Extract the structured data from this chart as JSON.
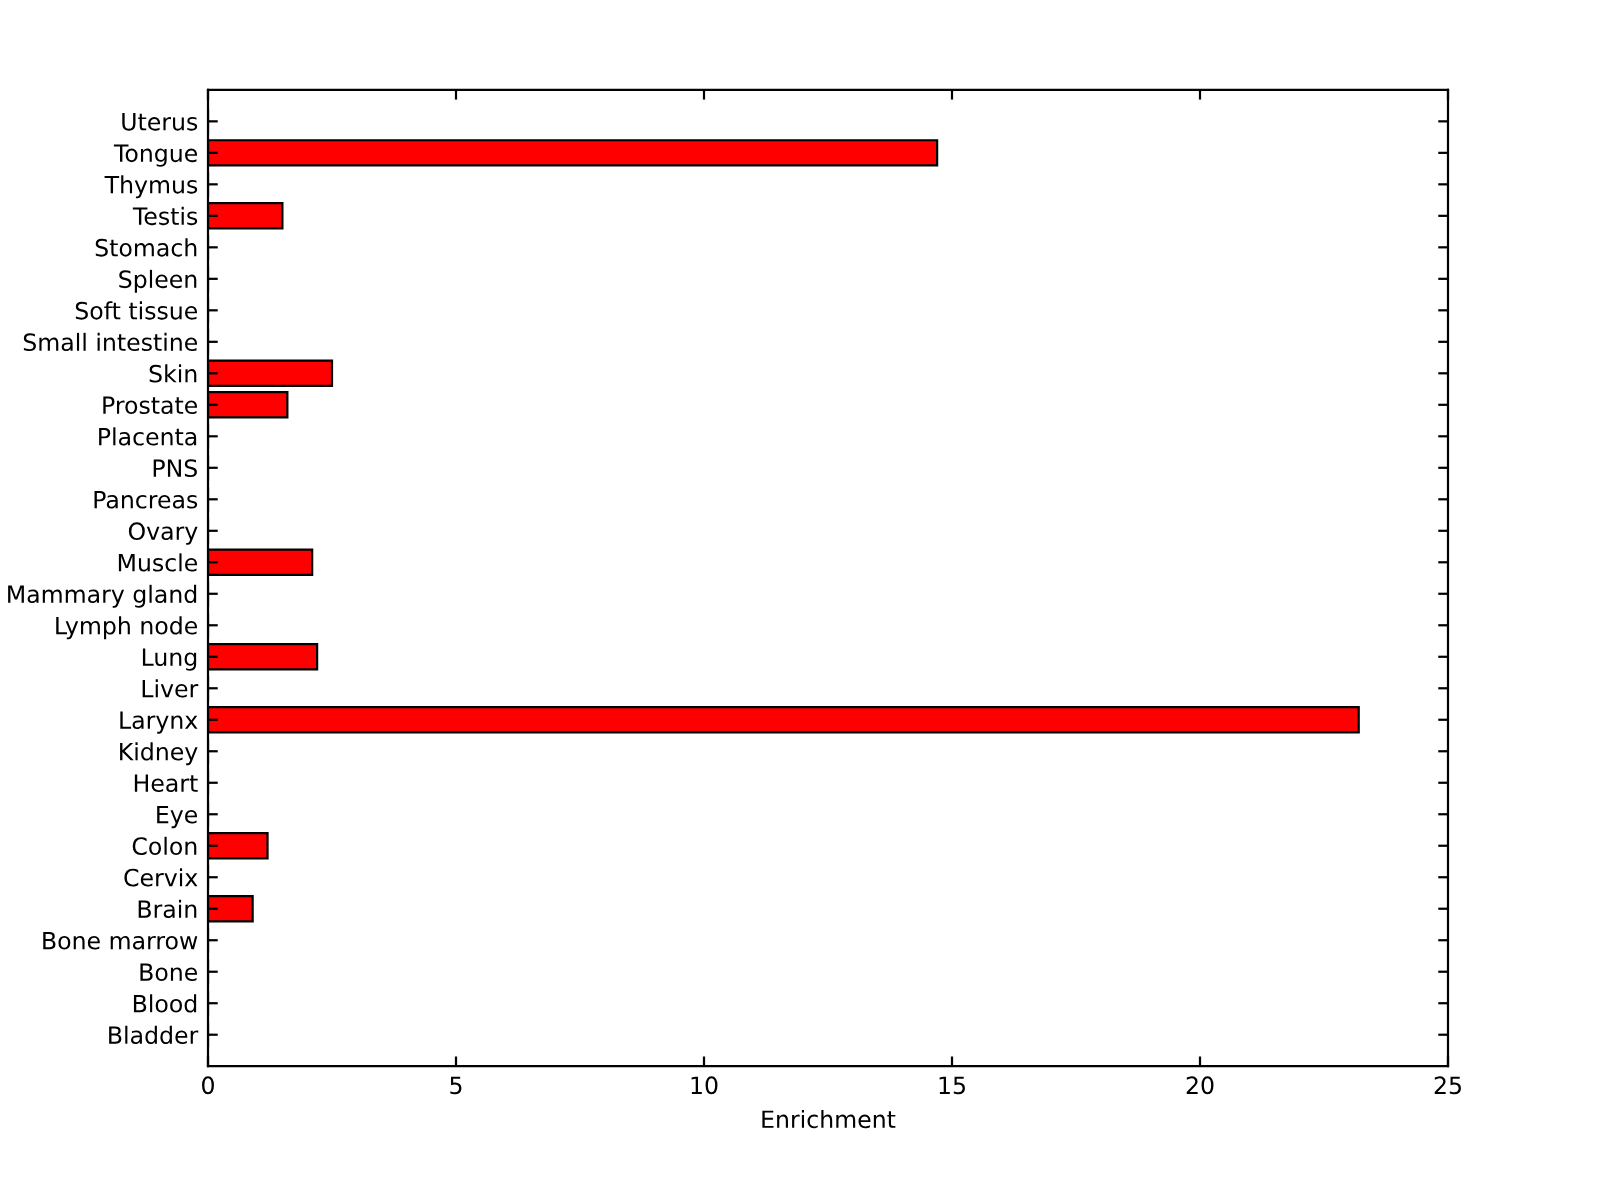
{
  "chart_data": {
    "type": "bar",
    "orientation": "horizontal",
    "xlabel": "Enrichment",
    "categories": [
      "Uterus",
      "Tongue",
      "Thymus",
      "Testis",
      "Stomach",
      "Spleen",
      "Soft tissue",
      "Small intestine",
      "Skin",
      "Prostate",
      "Placenta",
      "PNS",
      "Pancreas",
      "Ovary",
      "Muscle",
      "Mammary gland",
      "Lymph node",
      "Lung",
      "Liver",
      "Larynx",
      "Kidney",
      "Heart",
      "Eye",
      "Colon",
      "Cervix",
      "Brain",
      "Bone marrow",
      "Bone",
      "Blood",
      "Bladder"
    ],
    "values": [
      0,
      14.7,
      0,
      1.5,
      0,
      0,
      0,
      0,
      2.5,
      1.6,
      0,
      0,
      0,
      0,
      2.1,
      0,
      0,
      2.2,
      0,
      23.2,
      0,
      0,
      0,
      1.2,
      0,
      0.9,
      0,
      0,
      0,
      0
    ],
    "color": "#ff0000",
    "xlim": [
      0,
      25
    ],
    "xticks": [
      0,
      5,
      10,
      15,
      20,
      25
    ],
    "grid": false
  }
}
